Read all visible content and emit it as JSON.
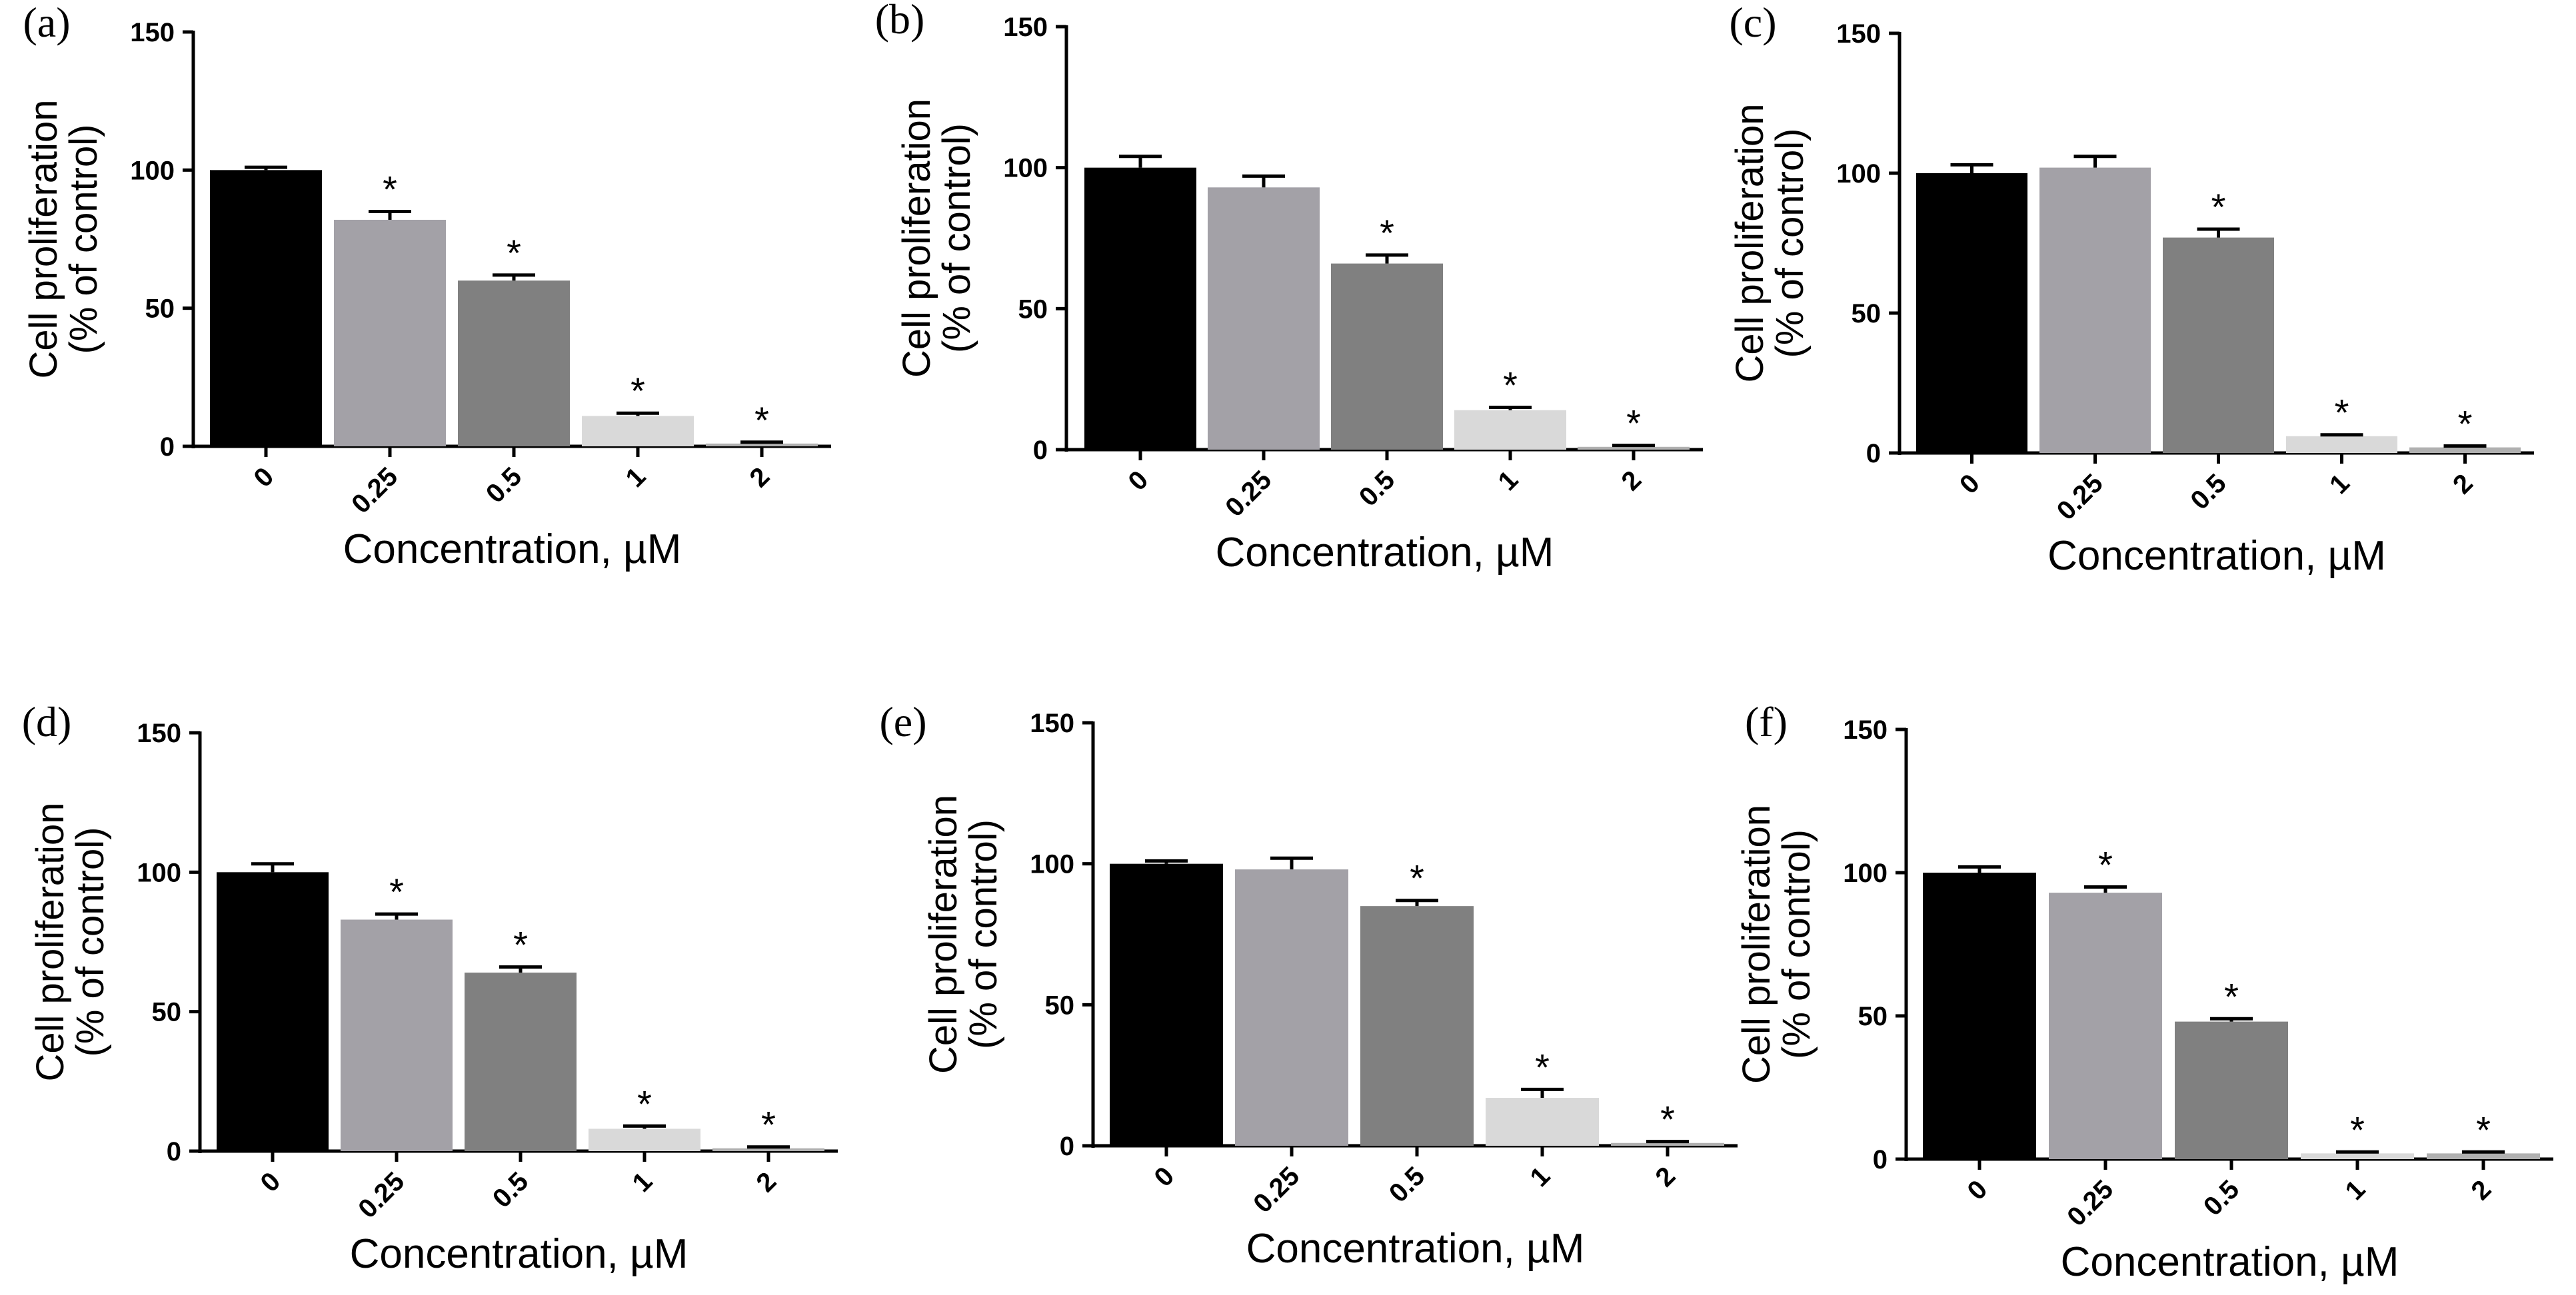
{
  "chart_data": [
    {
      "type": "bar",
      "panel": "(a)",
      "ylabel_line1": "Cell proliferation",
      "ylabel_line2": "(% of control)",
      "xlabel": "Concentration,  µM",
      "categories": [
        "0",
        "0.25",
        "0.5",
        "1",
        "2"
      ],
      "values": [
        100,
        82,
        60,
        11,
        1
      ],
      "errors": [
        1,
        3,
        2,
        1,
        0.5
      ],
      "significance": [
        "",
        "*",
        "*",
        "*",
        "*"
      ],
      "yticks": [
        "0",
        "50",
        "100",
        "150"
      ],
      "ylim": [
        0,
        150
      ],
      "bar_colors": [
        "#000000",
        "#a3a1a7",
        "#808080",
        "#d9d9d9",
        "#b0b0b0"
      ]
    },
    {
      "type": "bar",
      "panel": "(b)",
      "ylabel_line1": "Cell proliferation",
      "ylabel_line2": "(% of control)",
      "xlabel": "Concentration,  µM",
      "categories": [
        "0",
        "0.25",
        "0.5",
        "1",
        "2"
      ],
      "values": [
        100,
        93,
        66,
        14,
        1
      ],
      "errors": [
        4,
        4,
        3,
        1,
        0.5
      ],
      "significance": [
        "",
        "",
        "*",
        "*",
        "*"
      ],
      "yticks": [
        "0",
        "50",
        "100",
        "150"
      ],
      "ylim": [
        0,
        150
      ],
      "bar_colors": [
        "#000000",
        "#a3a1a7",
        "#808080",
        "#d9d9d9",
        "#b0b0b0"
      ]
    },
    {
      "type": "bar",
      "panel": "(c)",
      "ylabel_line1": "Cell proliferation",
      "ylabel_line2": "(% of control)",
      "xlabel": "Concentration,  µM",
      "categories": [
        "0",
        "0.25",
        "0.5",
        "1",
        "2"
      ],
      "values": [
        100,
        102,
        77,
        6,
        2
      ],
      "errors": [
        3,
        4,
        3,
        0.5,
        0.5
      ],
      "significance": [
        "",
        "",
        "*",
        "*",
        "*"
      ],
      "yticks": [
        "0",
        "50",
        "100",
        "150"
      ],
      "ylim": [
        0,
        150
      ],
      "bar_colors": [
        "#000000",
        "#a3a1a7",
        "#808080",
        "#d9d9d9",
        "#b0b0b0"
      ]
    },
    {
      "type": "bar",
      "panel": "(d)",
      "ylabel_line1": "Cell proliferation",
      "ylabel_line2": "(% of control)",
      "xlabel": "Concentration,  µM",
      "categories": [
        "0",
        "0.25",
        "0.5",
        "1",
        "2"
      ],
      "values": [
        100,
        83,
        64,
        8,
        1
      ],
      "errors": [
        3,
        2,
        2,
        1,
        0.5
      ],
      "significance": [
        "",
        "*",
        "*",
        "*",
        "*"
      ],
      "yticks": [
        "0",
        "50",
        "100",
        "150"
      ],
      "ylim": [
        0,
        150
      ],
      "bar_colors": [
        "#000000",
        "#a3a1a7",
        "#808080",
        "#d9d9d9",
        "#b0b0b0"
      ]
    },
    {
      "type": "bar",
      "panel": "(e)",
      "ylabel_line1": "Cell proliferation",
      "ylabel_line2": "(% of control)",
      "xlabel": "Concentration,  µM",
      "categories": [
        "0",
        "0.25",
        "0.5",
        "1",
        "2"
      ],
      "values": [
        100,
        98,
        85,
        17,
        1
      ],
      "errors": [
        1,
        4,
        2,
        3,
        0.5
      ],
      "significance": [
        "",
        "",
        "*",
        "*",
        "*"
      ],
      "yticks": [
        "0",
        "50",
        "100",
        "150"
      ],
      "ylim": [
        0,
        150
      ],
      "bar_colors": [
        "#000000",
        "#a3a1a7",
        "#808080",
        "#d9d9d9",
        "#b0b0b0"
      ]
    },
    {
      "type": "bar",
      "panel": "(f)",
      "ylabel_line1": "Cell proliferation",
      "ylabel_line2": "(% of control)",
      "xlabel": "Concentration,  µM",
      "categories": [
        "0",
        "0.25",
        "0.5",
        "1",
        "2"
      ],
      "values": [
        100,
        93,
        48,
        2,
        2
      ],
      "errors": [
        2,
        2,
        1,
        0.5,
        0.5
      ],
      "significance": [
        "",
        "*",
        "*",
        "*",
        "*"
      ],
      "yticks": [
        "0",
        "50",
        "100",
        "150"
      ],
      "ylim": [
        0,
        150
      ],
      "bar_colors": [
        "#000000",
        "#a3a1a7",
        "#808080",
        "#d9d9d9",
        "#b0b0b0"
      ]
    }
  ]
}
